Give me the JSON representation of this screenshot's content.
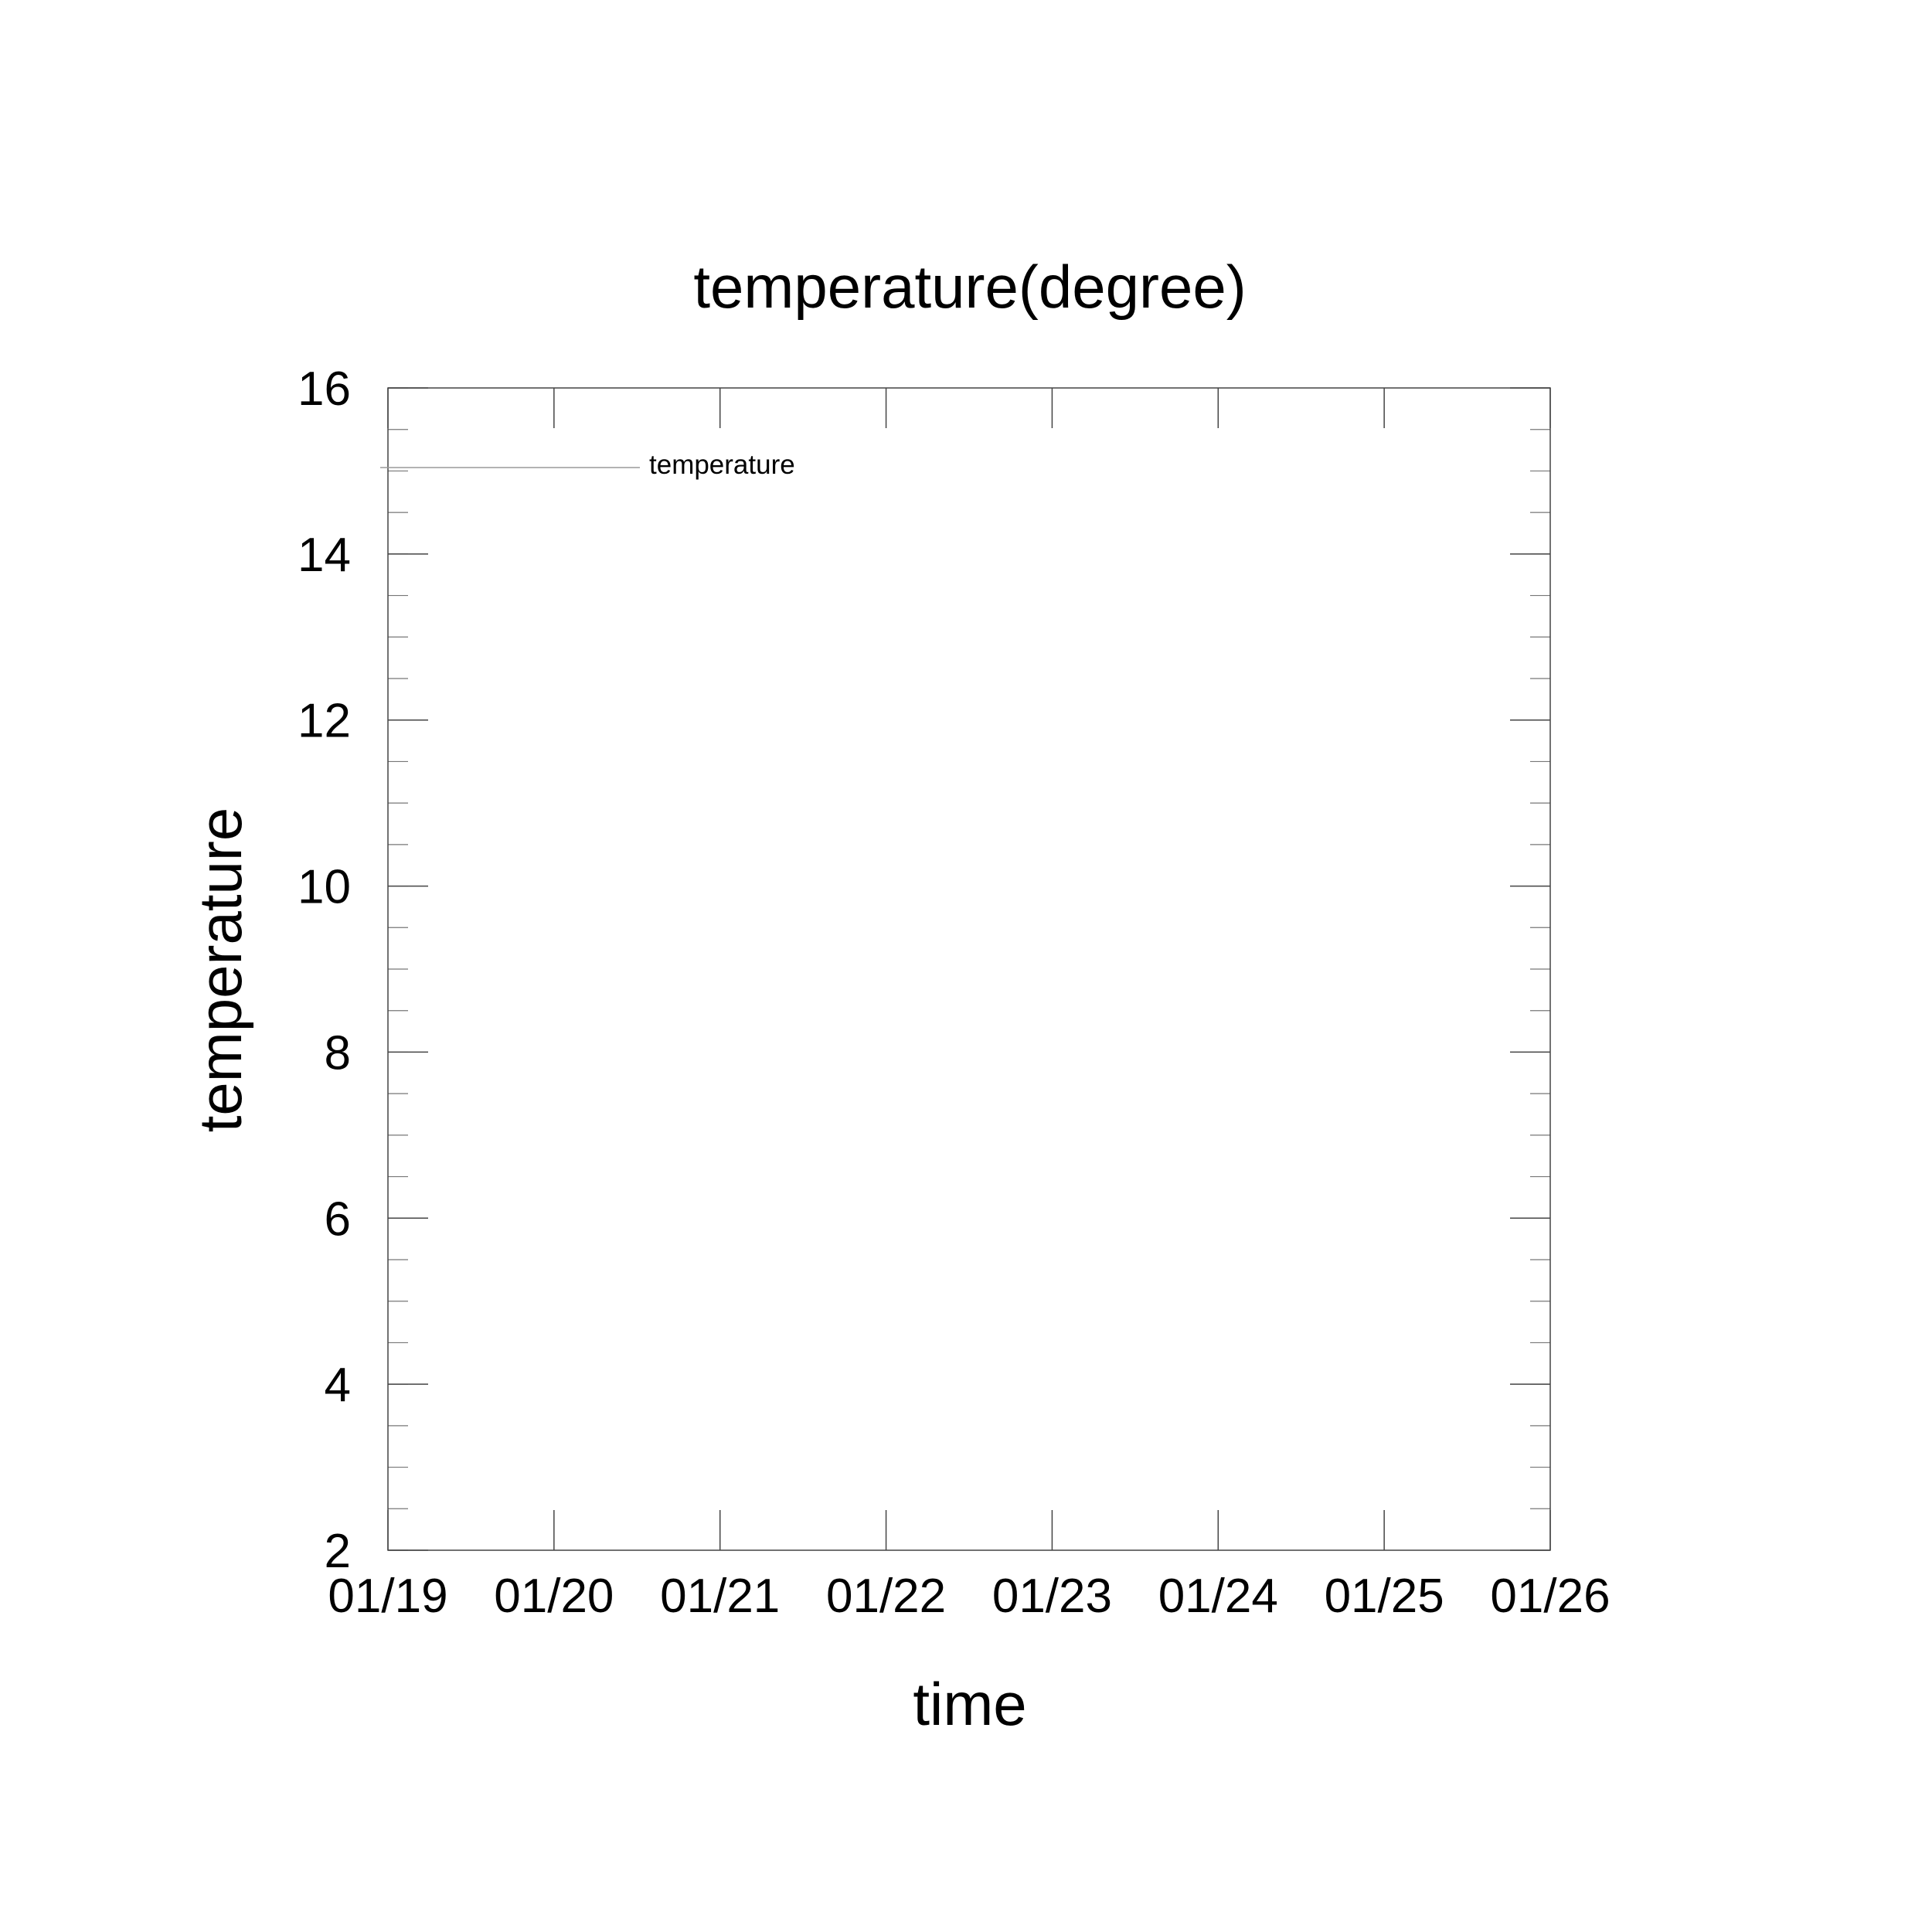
{
  "chart_data": {
    "type": "line",
    "title": "temperature(degree)",
    "xlabel": "time",
    "ylabel": "temperature",
    "x_ticks": [
      "01/19",
      "01/20",
      "01/21",
      "01/22",
      "01/23",
      "01/24",
      "01/25",
      "01/26"
    ],
    "ylim": [
      2,
      16
    ],
    "y_ticks": [
      2,
      4,
      6,
      8,
      10,
      12,
      14,
      16
    ],
    "y_minor_step": 0.5,
    "grid": false,
    "legend_position": "top-left",
    "series": [
      {
        "name": "temperature",
        "color": "#9a9a9a",
        "values": []
      }
    ]
  }
}
